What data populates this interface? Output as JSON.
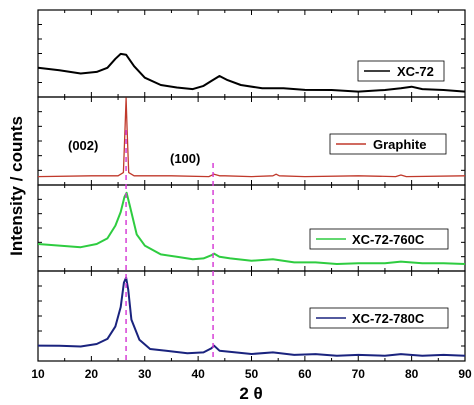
{
  "chart_data": {
    "type": "line",
    "xlabel": "2 θ",
    "ylabel": "Intensity / counts",
    "xlim": [
      10,
      90
    ],
    "xticks": [
      "10",
      "20",
      "30",
      "40",
      "50",
      "60",
      "70",
      "80",
      "90"
    ],
    "xtick_values": [
      10,
      20,
      30,
      40,
      50,
      60,
      70,
      80,
      90
    ],
    "annotations": {
      "peak_002": "(002)",
      "peak_100": "(100)"
    },
    "reference_lines_x": [
      26.5,
      42.8
    ],
    "legend_position": "right",
    "series": [
      {
        "name": "XC-72",
        "color": "#000000",
        "ylim": [
          0,
          1
        ],
        "x": [
          10,
          14,
          18,
          21,
          23,
          24.5,
          25.5,
          26.5,
          28,
          30,
          33,
          36,
          39,
          41,
          42.5,
          44,
          45.5,
          48,
          52,
          56,
          60,
          65,
          70,
          75,
          78,
          80,
          82,
          86,
          90
        ],
        "y": [
          0.3,
          0.26,
          0.23,
          0.24,
          0.3,
          0.4,
          0.47,
          0.45,
          0.32,
          0.17,
          0.09,
          0.05,
          0.04,
          0.07,
          0.14,
          0.19,
          0.15,
          0.08,
          0.05,
          0.04,
          0.03,
          0.02,
          0.01,
          0.02,
          0.05,
          0.06,
          0.04,
          0.02,
          0.01
        ]
      },
      {
        "name": "Graphite",
        "color": "#c0392b",
        "ylim": [
          0,
          1
        ],
        "x": [
          10,
          20,
          25,
          26,
          26.3,
          26.5,
          26.7,
          27,
          28,
          35,
          42,
          43,
          44,
          45,
          50,
          54,
          54.6,
          55.2,
          60,
          70,
          77,
          78,
          79,
          90
        ],
        "y": [
          0.01,
          0.01,
          0.02,
          0.05,
          0.6,
          0.98,
          0.6,
          0.05,
          0.02,
          0.01,
          0.01,
          0.03,
          0.02,
          0.01,
          0.01,
          0.01,
          0.04,
          0.01,
          0.01,
          0.01,
          0.01,
          0.02,
          0.01,
          0.01
        ]
      },
      {
        "name": "XC-72-760C",
        "color": "#2ecc40",
        "ylim": [
          0,
          1
        ],
        "x": [
          10,
          14,
          18,
          21,
          23,
          24.5,
          25.5,
          26.2,
          26.6,
          27.2,
          28.5,
          30,
          33,
          36,
          39,
          41,
          42.5,
          43,
          44,
          46,
          50,
          54,
          58,
          62,
          66,
          70,
          75,
          78,
          82,
          86,
          90
        ],
        "y": [
          0.28,
          0.25,
          0.24,
          0.27,
          0.35,
          0.5,
          0.68,
          0.86,
          0.92,
          0.75,
          0.4,
          0.25,
          0.15,
          0.11,
          0.09,
          0.09,
          0.14,
          0.15,
          0.12,
          0.09,
          0.07,
          0.08,
          0.05,
          0.04,
          0.03,
          0.03,
          0.04,
          0.05,
          0.04,
          0.03,
          0.03
        ]
      },
      {
        "name": "XC-72-780C",
        "color": "#1a237e",
        "ylim": [
          0,
          1
        ],
        "x": [
          10,
          14,
          18,
          21,
          23,
          24.5,
          25.5,
          26.1,
          26.5,
          26.9,
          27.5,
          29,
          31,
          34,
          38,
          41,
          42.5,
          43,
          44,
          47,
          50,
          54,
          58,
          62,
          66,
          70,
          75,
          78,
          82,
          86,
          90
        ],
        "y": [
          0.14,
          0.13,
          0.13,
          0.15,
          0.22,
          0.36,
          0.6,
          0.88,
          0.95,
          0.8,
          0.45,
          0.2,
          0.1,
          0.07,
          0.05,
          0.05,
          0.11,
          0.13,
          0.08,
          0.05,
          0.04,
          0.05,
          0.03,
          0.03,
          0.02,
          0.02,
          0.02,
          0.03,
          0.02,
          0.02,
          0.02
        ]
      }
    ]
  }
}
